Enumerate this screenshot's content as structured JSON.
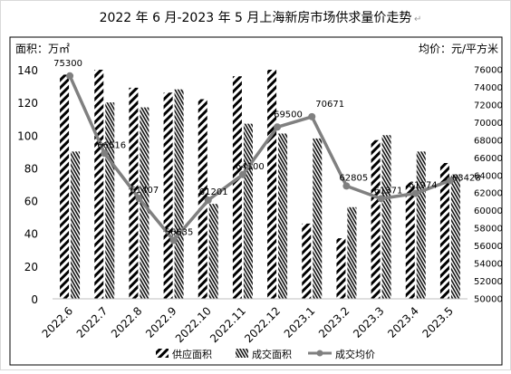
{
  "chart_data": {
    "type": "bar",
    "title": "2022 年 6 月-2023 年 5 月上海新房市场供求量价走势",
    "title_mark": "↵",
    "ylabel_left": "面积：万㎡",
    "ylabel_right": "均价：元/平方米",
    "categories": [
      "2022.6",
      "2022.7",
      "2022.8",
      "2022.9",
      "2022.10",
      "2022.11",
      "2022.12",
      "2023.1",
      "2023.2",
      "2023.3",
      "2023.4",
      "2023.5"
    ],
    "y_left_ticks": [
      "0",
      "20",
      "40",
      "60",
      "80",
      "100",
      "120",
      "140"
    ],
    "y_right_ticks": [
      "50000",
      "52000",
      "54000",
      "56000",
      "58000",
      "60000",
      "62000",
      "64000",
      "66000",
      "68000",
      "70000",
      "72000",
      "74000",
      "76000"
    ],
    "ylim_left": [
      0,
      140
    ],
    "ylim_right": [
      50000,
      76000
    ],
    "series": [
      {
        "name": "供应面积",
        "type": "bar",
        "pattern": "diagonal-hatch",
        "axis": "left",
        "values": [
          137,
          140,
          129,
          126,
          122,
          136,
          140,
          46,
          37,
          97,
          71,
          83
        ]
      },
      {
        "name": "成交面积",
        "type": "bar",
        "pattern": "dense-hatch",
        "axis": "left",
        "values": [
          90,
          120,
          117,
          128,
          58,
          107,
          101,
          98,
          56,
          100,
          90,
          76
        ]
      },
      {
        "name": "成交均价",
        "type": "line",
        "color": "#808080",
        "axis": "right",
        "values": [
          75300,
          66516,
          61407,
          56635,
          61201,
          64100,
          69500,
          70671,
          62805,
          61371,
          61974,
          63428
        ],
        "labels": [
          "75300",
          "66516",
          "61407",
          "56635",
          "61201",
          "64100",
          "69500",
          "70671",
          "62805",
          "61371",
          "61974",
          "63428"
        ]
      }
    ],
    "legend_position": "bottom",
    "grid": false
  }
}
